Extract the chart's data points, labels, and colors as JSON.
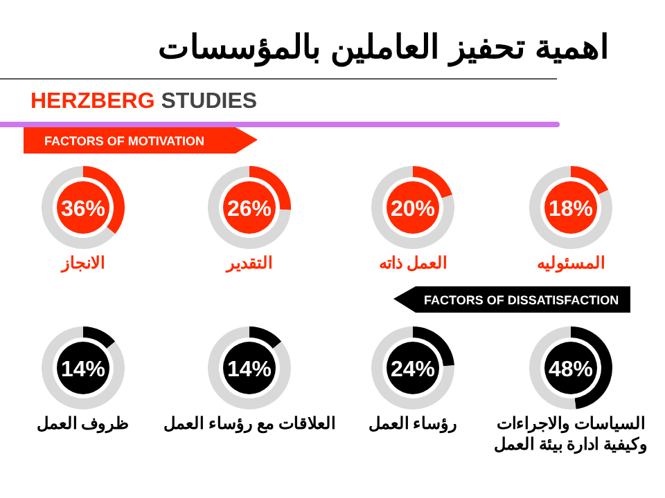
{
  "chart_data": [
    {
      "type": "other",
      "title": "اهمية تحفيز العاملين بالمؤسسات",
      "subtitle": "HERZBERG STUDIES",
      "annotations": [
        "FACTORS OF MOTIVATION"
      ]
    },
    {
      "type": "donut",
      "title": "الانجاز",
      "categories": [
        null,
        null
      ],
      "values": [
        36,
        64
      ],
      "colors": [
        "#ff2a00",
        "#d9d9d9"
      ],
      "annotations": [
        "36%"
      ]
    },
    {
      "type": "donut",
      "title": "التقدير",
      "categories": [
        null,
        null
      ],
      "values": [
        26,
        74
      ],
      "colors": [
        "#ff2a00",
        "#d9d9d9"
      ],
      "annotations": [
        "26%"
      ]
    },
    {
      "type": "donut",
      "title": "العمل ذاته",
      "categories": [
        null,
        null
      ],
      "values": [
        20,
        80
      ],
      "colors": [
        "#ff2a00",
        "#d9d9d9"
      ],
      "annotations": [
        "20%"
      ]
    },
    {
      "type": "donut",
      "title": "المسئوليه",
      "categories": [
        null,
        null
      ],
      "values": [
        18,
        82
      ],
      "colors": [
        "#ff2a00",
        "#d9d9d9"
      ],
      "annotations": [
        "18%"
      ]
    },
    {
      "type": "other",
      "annotations": [
        "FACTORS OF DISSATISFACTION"
      ]
    },
    {
      "type": "donut",
      "title": "ظروف العمل",
      "categories": [
        null,
        null
      ],
      "values": [
        14,
        86
      ],
      "colors": [
        "#000000",
        "#d9d9d9"
      ],
      "annotations": [
        "14%"
      ]
    },
    {
      "type": "donut",
      "title": "العلاقات مع رؤساء العمل",
      "categories": [
        null,
        null
      ],
      "values": [
        14,
        86
      ],
      "colors": [
        "#000000",
        "#d9d9d9"
      ],
      "annotations": [
        "14%"
      ]
    },
    {
      "type": "donut",
      "title": "رؤساء العمل",
      "categories": [
        null,
        null
      ],
      "values": [
        24,
        76
      ],
      "colors": [
        "#000000",
        "#d9d9d9"
      ],
      "annotations": [
        "24%"
      ]
    },
    {
      "type": "donut",
      "title": "السياسات والاجراءات\nوكيفية ادارة بيئة العمل",
      "categories": [
        null,
        null
      ],
      "values": [
        48,
        52
      ],
      "colors": [
        "#000000",
        "#d9d9d9"
      ],
      "annotations": [
        "48%"
      ]
    }
  ]
}
